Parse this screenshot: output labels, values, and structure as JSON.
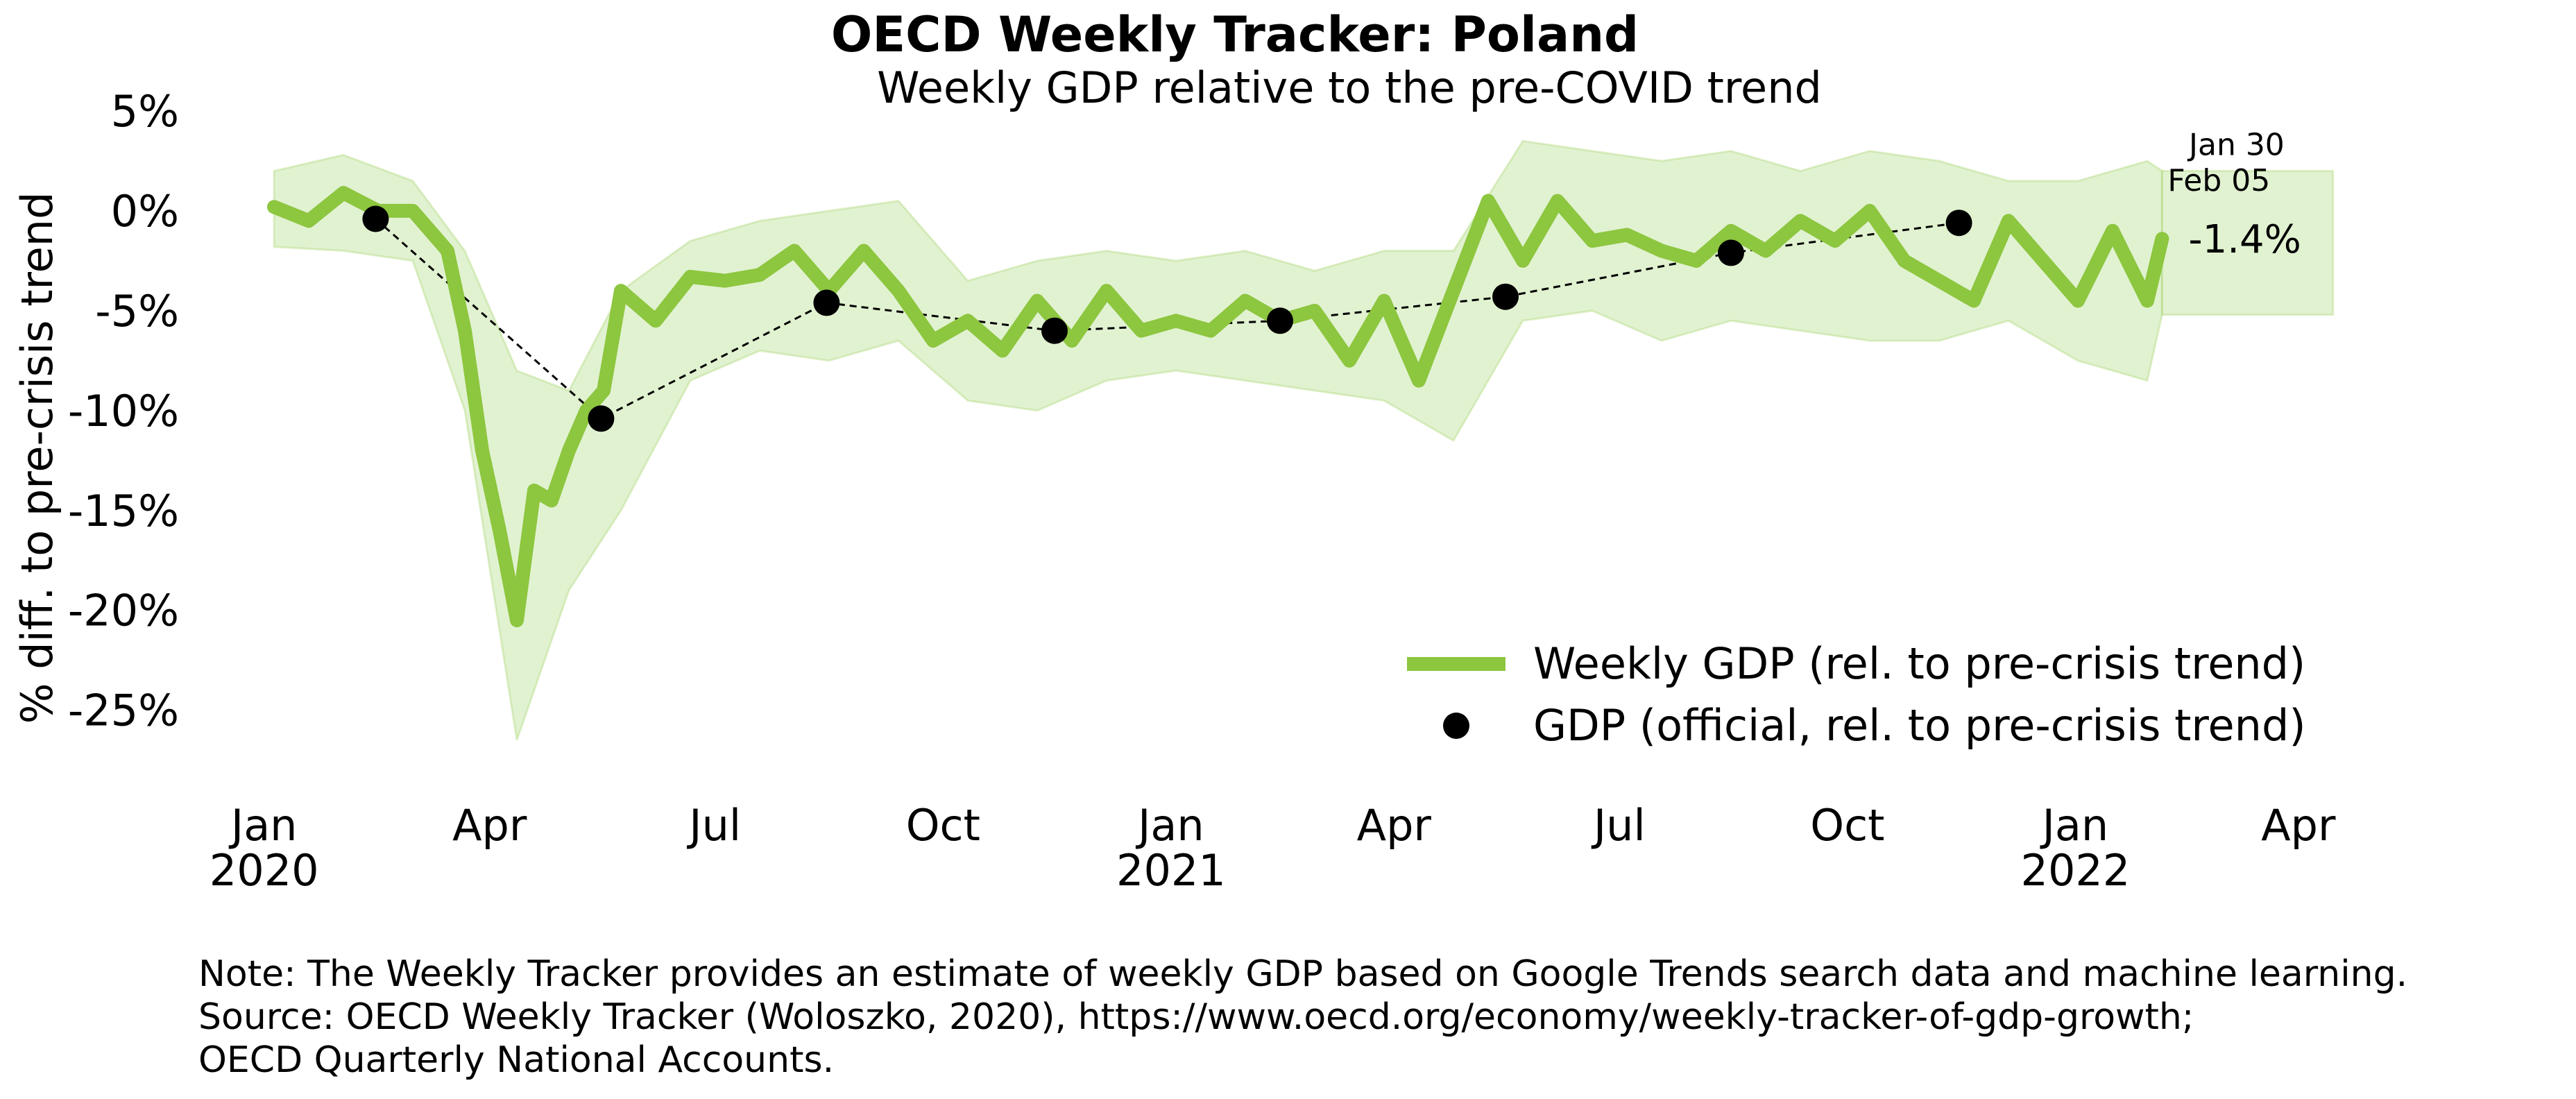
{
  "chart_data": {
    "type": "line",
    "title": "OECD Weekly Tracker: Poland",
    "subtitle": "Weekly GDP relative to the pre-COVID trend",
    "ylabel": "% diff. to pre-crisis trend",
    "xlabel": "",
    "ylim": [
      -28,
      5
    ],
    "xlim": [
      "2019-12-15",
      "2022-05-01"
    ],
    "y_ticks": [
      5,
      0,
      -5,
      -10,
      -15,
      -20,
      -25
    ],
    "y_tick_labels": [
      "5%",
      "0%",
      "-5%",
      "-10%",
      "-15%",
      "-20%",
      "-25%"
    ],
    "x_ticks": [
      {
        "date": "2020-01-01",
        "label": "Jan",
        "year": "2020"
      },
      {
        "date": "2020-04-01",
        "label": "Apr",
        "year": ""
      },
      {
        "date": "2020-07-01",
        "label": "Jul",
        "year": ""
      },
      {
        "date": "2020-10-01",
        "label": "Oct",
        "year": ""
      },
      {
        "date": "2021-01-01",
        "label": "Jan",
        "year": "2021"
      },
      {
        "date": "2021-04-01",
        "label": "Apr",
        "year": ""
      },
      {
        "date": "2021-07-01",
        "label": "Jul",
        "year": ""
      },
      {
        "date": "2021-10-01",
        "label": "Oct",
        "year": ""
      },
      {
        "date": "2022-01-01",
        "label": "Jan",
        "year": "2022"
      },
      {
        "date": "2022-04-01",
        "label": "Apr",
        "year": ""
      }
    ],
    "grid": false,
    "legend_position": "lower-right",
    "colors": {
      "weekly": "#8dc63f",
      "band": "#d4ecbe",
      "official": "#000000"
    },
    "series": [
      {
        "name": "Weekly GDP (rel. to pre-crisis trend)",
        "style": "thick-line",
        "x": [
          "2020-01-05",
          "2020-01-19",
          "2020-02-02",
          "2020-02-16",
          "2020-03-01",
          "2020-03-15",
          "2020-03-22",
          "2020-03-29",
          "2020-04-05",
          "2020-04-12",
          "2020-04-19",
          "2020-04-26",
          "2020-05-03",
          "2020-05-10",
          "2020-05-17",
          "2020-05-24",
          "2020-06-07",
          "2020-06-21",
          "2020-07-05",
          "2020-07-19",
          "2020-08-02",
          "2020-08-16",
          "2020-08-30",
          "2020-09-13",
          "2020-09-27",
          "2020-10-11",
          "2020-10-25",
          "2020-11-08",
          "2020-11-22",
          "2020-12-06",
          "2020-12-20",
          "2021-01-03",
          "2021-01-17",
          "2021-01-31",
          "2021-02-14",
          "2021-02-28",
          "2021-03-14",
          "2021-03-28",
          "2021-04-11",
          "2021-04-25",
          "2021-05-09",
          "2021-05-23",
          "2021-06-06",
          "2021-06-20",
          "2021-07-04",
          "2021-07-18",
          "2021-08-01",
          "2021-08-15",
          "2021-08-29",
          "2021-09-12",
          "2021-09-26",
          "2021-10-10",
          "2021-10-24",
          "2021-11-07",
          "2021-11-21",
          "2021-12-05",
          "2021-12-19",
          "2022-01-02",
          "2022-01-16",
          "2022-01-30",
          "2022-02-05"
        ],
        "values": [
          0.2,
          -0.5,
          0.9,
          0.0,
          0.0,
          -2.0,
          -6.0,
          -12.0,
          -16.0,
          -20.5,
          -14.0,
          -14.5,
          -12.0,
          -10.0,
          -9.0,
          -4.0,
          -5.5,
          -3.3,
          -3.5,
          -3.2,
          -2.0,
          -4.0,
          -2.0,
          -4.0,
          -6.5,
          -5.5,
          -7.0,
          -4.5,
          -6.5,
          -4.0,
          -6.0,
          -5.5,
          -6.0,
          -4.5,
          -5.5,
          -5.0,
          -7.5,
          -4.5,
          -8.5,
          -4.0,
          0.5,
          -2.5,
          0.5,
          -1.5,
          -1.2,
          -2.0,
          -2.5,
          -1.0,
          -2.0,
          -0.5,
          -1.5,
          0.0,
          -2.5,
          -3.5,
          -4.5,
          -0.5,
          -2.5,
          -4.5,
          -1.0,
          -4.5,
          -1.4
        ]
      },
      {
        "name": "GDP (official, rel. to pre-crisis trend)",
        "style": "dots-dashed",
        "x": [
          "2020-02-15",
          "2020-05-16",
          "2020-08-15",
          "2020-11-15",
          "2021-02-14",
          "2021-05-16",
          "2021-08-15",
          "2021-11-15"
        ],
        "values": [
          -0.4,
          -10.4,
          -4.6,
          -6.0,
          -5.5,
          -4.3,
          -2.1,
          -0.6
        ]
      }
    ],
    "band": {
      "x": [
        "2020-01-05",
        "2020-02-02",
        "2020-03-01",
        "2020-03-22",
        "2020-04-12",
        "2020-05-03",
        "2020-05-24",
        "2020-06-21",
        "2020-07-19",
        "2020-08-16",
        "2020-09-13",
        "2020-10-11",
        "2020-11-08",
        "2020-12-06",
        "2021-01-03",
        "2021-01-31",
        "2021-02-28",
        "2021-03-28",
        "2021-04-25",
        "2021-05-23",
        "2021-06-20",
        "2021-07-18",
        "2021-08-15",
        "2021-09-12",
        "2021-10-10",
        "2021-11-07",
        "2021-12-05",
        "2022-01-02",
        "2022-01-30",
        "2022-02-05"
      ],
      "upper": [
        2.0,
        2.8,
        1.5,
        -2.0,
        -8.0,
        -9.0,
        -4.0,
        -1.5,
        -0.5,
        0.0,
        0.5,
        -3.5,
        -2.5,
        -2.0,
        -2.5,
        -2.0,
        -3.0,
        -2.0,
        -2.0,
        3.5,
        3.0,
        2.5,
        3.0,
        2.0,
        3.0,
        2.5,
        1.5,
        1.5,
        2.5,
        2.0
      ],
      "lower": [
        -1.8,
        -2.0,
        -2.5,
        -10.0,
        -26.5,
        -19.0,
        -15.0,
        -8.5,
        -7.0,
        -7.5,
        -6.5,
        -9.5,
        -10.0,
        -8.5,
        -8.0,
        -8.5,
        -9.0,
        -9.5,
        -11.5,
        -5.5,
        -5.0,
        -6.5,
        -5.5,
        -6.0,
        -6.5,
        -6.5,
        -5.5,
        -7.5,
        -8.5,
        -5.2
      ]
    },
    "annotations": [
      {
        "text": "Jan 30",
        "x": "2022-01-30",
        "y": 2.8
      },
      {
        "text": "Feb 05",
        "x": "2022-02-05",
        "y": 1.0
      },
      {
        "text": "-1.4%",
        "x": "2022-02-05",
        "y": -1.4
      }
    ]
  },
  "note": {
    "line1": "Note: The Weekly Tracker provides an estimate of weekly GDP based on Google Trends search data and machine learning.",
    "line2": "Source: OECD Weekly Tracker (Woloszko, 2020), https://www.oecd.org/economy/weekly-tracker-of-gdp-growth;",
    "line3": "OECD Quarterly National Accounts."
  }
}
